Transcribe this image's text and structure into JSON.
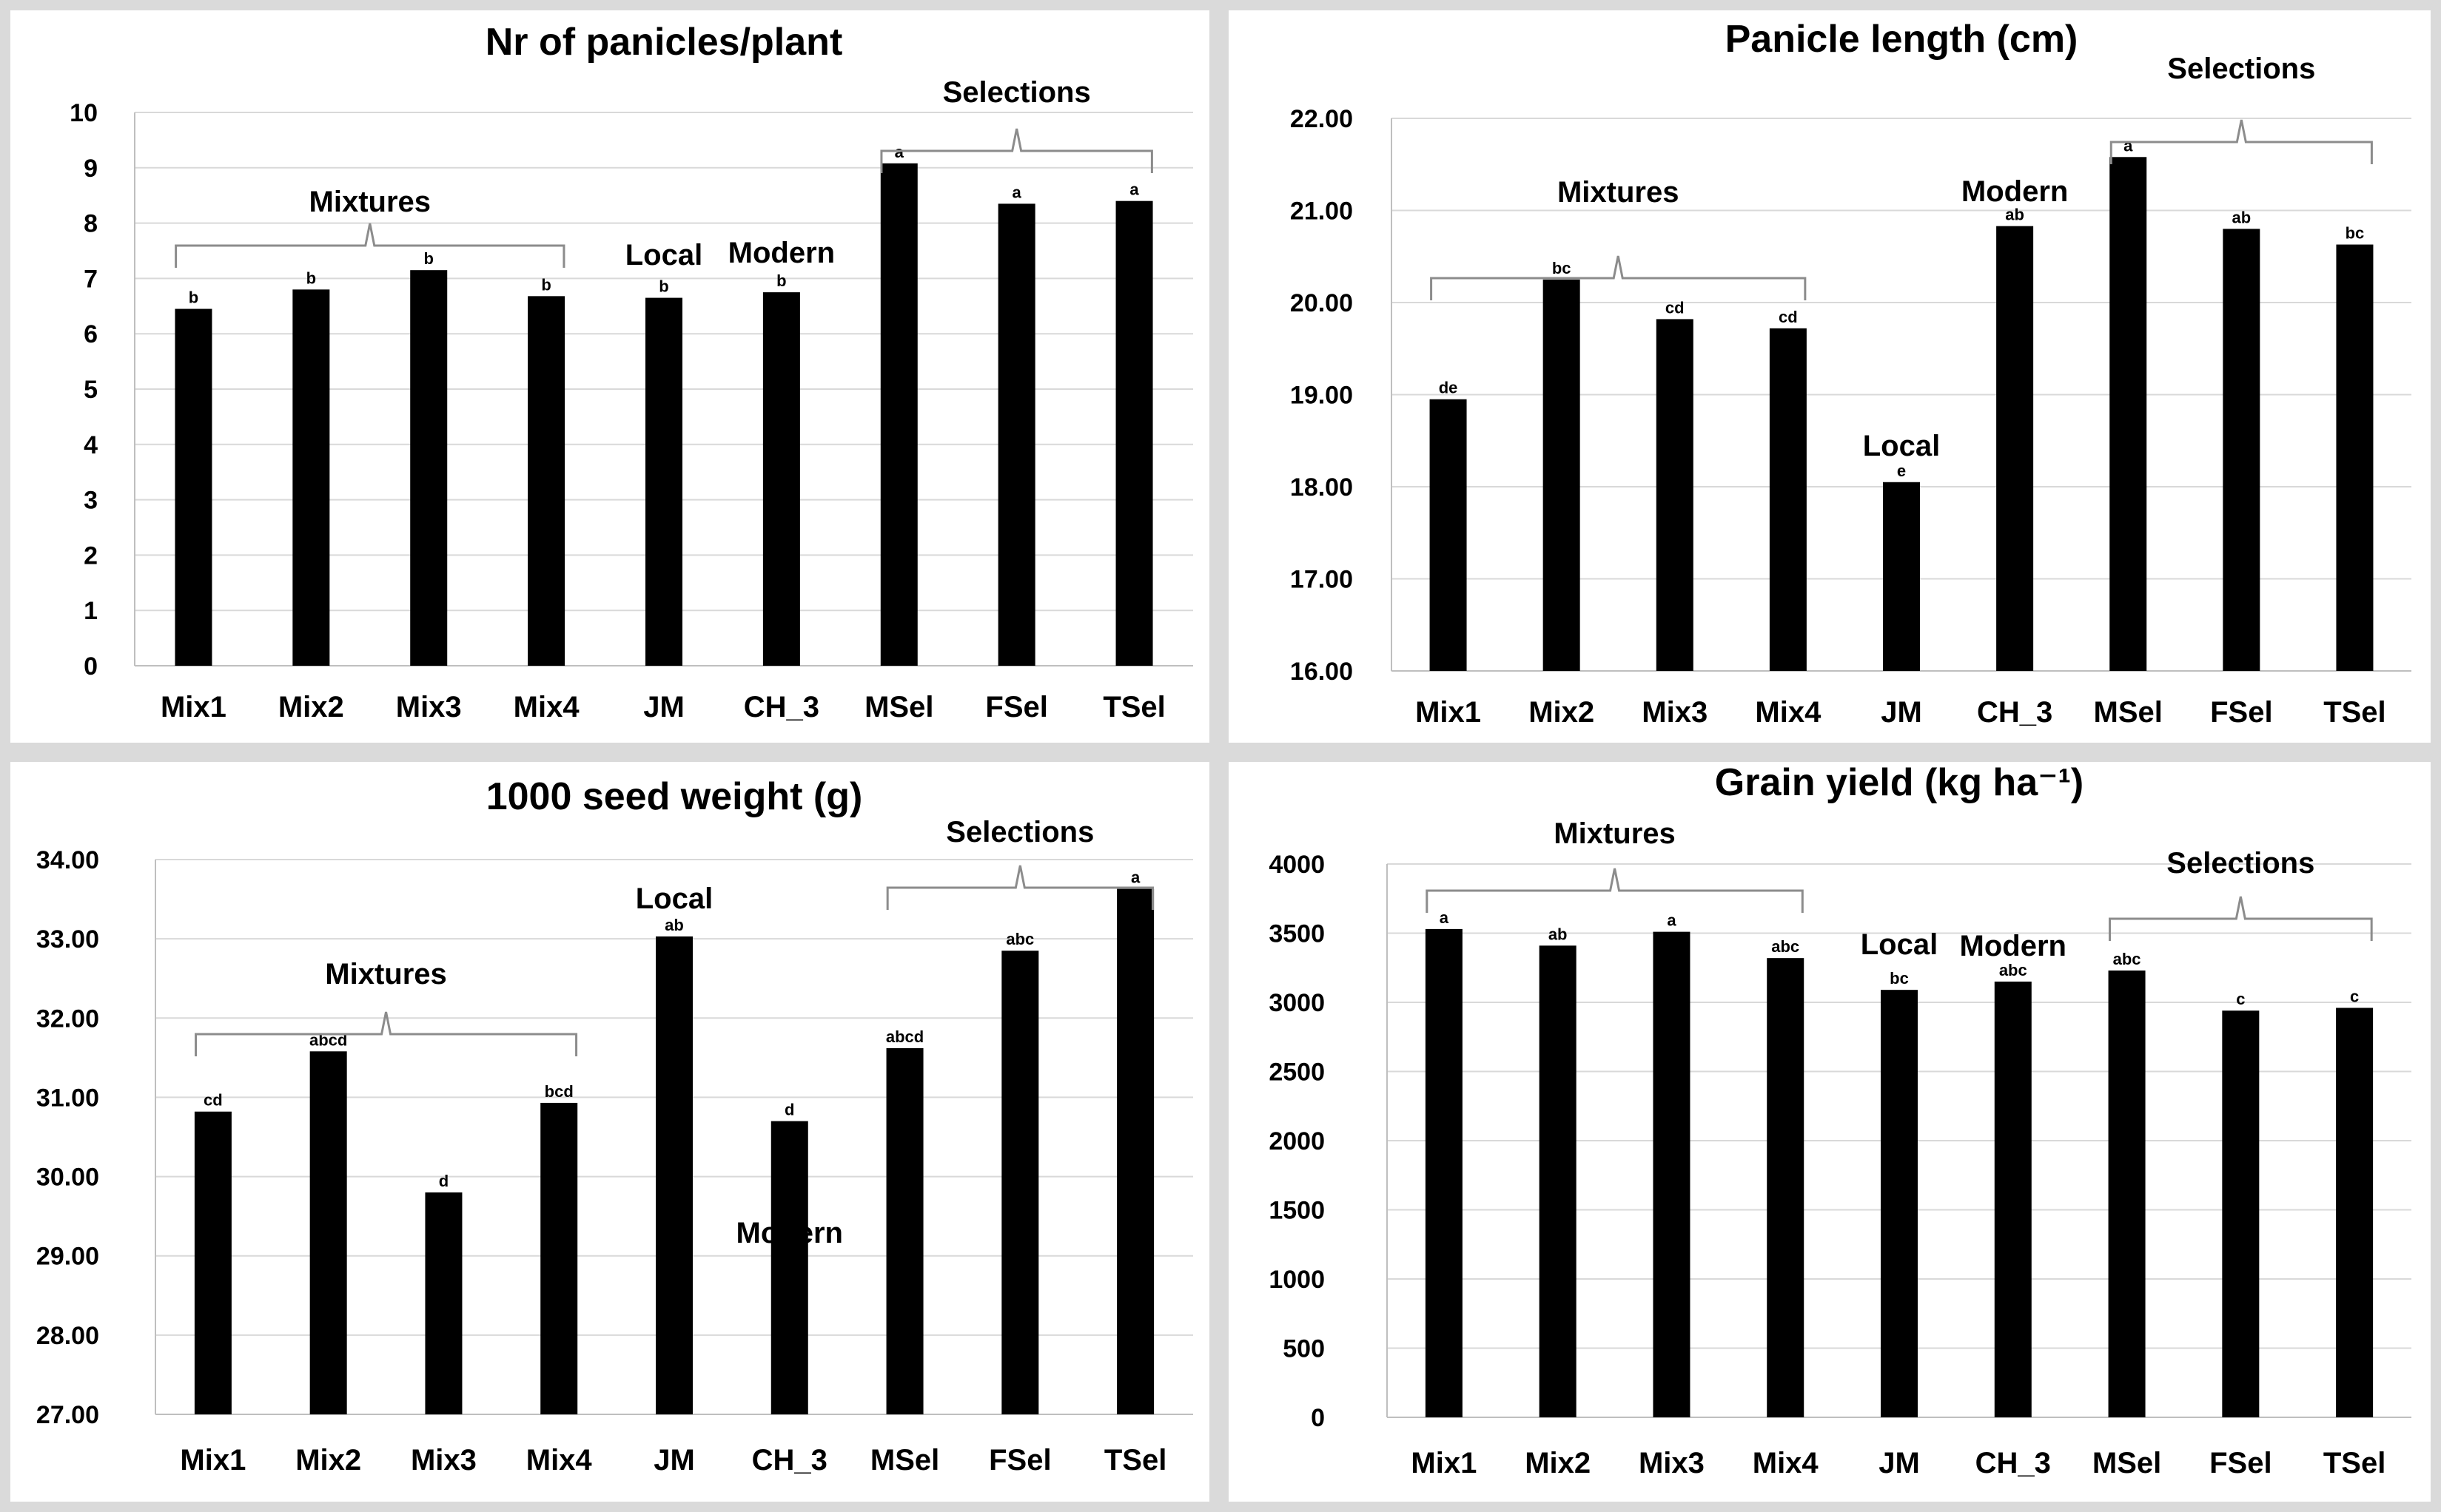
{
  "chart_data": [
    {
      "type": "bar",
      "title": "Nr of panicles/plant",
      "categories": [
        "Mix1",
        "Mix2",
        "Mix3",
        "Mix4",
        "JM",
        "CH_3",
        "MSel",
        "FSel",
        "TSel"
      ],
      "values": [
        6.45,
        6.8,
        7.15,
        6.68,
        6.65,
        6.75,
        9.08,
        8.35,
        8.4
      ],
      "letters": [
        "b",
        "b",
        "b",
        "b",
        "b",
        "b",
        "a",
        "a",
        "a"
      ],
      "ylim": [
        0,
        10
      ],
      "yticks": [
        "0",
        "1",
        "2",
        "3",
        "4",
        "5",
        "6",
        "7",
        "8",
        "9",
        "10"
      ],
      "xlabel": "",
      "ylabel": "",
      "grid": true,
      "annotations": [
        {
          "text": "Mixtures",
          "bracket": [
            0,
            3
          ]
        },
        {
          "text": "Local",
          "over": 4
        },
        {
          "text": "Modern",
          "over": 5
        },
        {
          "text": "Selections",
          "bracket": [
            6,
            8
          ]
        }
      ]
    },
    {
      "type": "bar",
      "title": "Panicle length (cm)",
      "categories": [
        "Mix1",
        "Mix2",
        "Mix3",
        "Mix4",
        "JM",
        "CH_3",
        "MSel",
        "FSel",
        "TSel"
      ],
      "values": [
        18.95,
        20.25,
        19.82,
        19.72,
        18.05,
        20.83,
        21.58,
        20.8,
        20.63
      ],
      "letters": [
        "de",
        "bc",
        "cd",
        "cd",
        "e",
        "ab",
        "a",
        "ab",
        "bc"
      ],
      "ylim": [
        16,
        22
      ],
      "yticks": [
        "16.00",
        "17.00",
        "18.00",
        "19.00",
        "20.00",
        "21.00",
        "22.00"
      ],
      "xlabel": "",
      "ylabel": "",
      "grid": true,
      "annotations": [
        {
          "text": "Mixtures",
          "bracket": [
            0,
            3
          ]
        },
        {
          "text": "Local",
          "over": 4
        },
        {
          "text": "Modern",
          "over": 5
        },
        {
          "text": "Selections",
          "bracket": [
            6,
            8
          ]
        }
      ]
    },
    {
      "type": "bar",
      "title": "1000 seed weight (g)",
      "categories": [
        "Mix1",
        "Mix2",
        "Mix3",
        "Mix4",
        "JM",
        "CH_3",
        "MSel",
        "FSel",
        "TSel"
      ],
      "values": [
        30.82,
        31.58,
        29.8,
        30.93,
        33.03,
        30.7,
        31.62,
        32.85,
        33.63
      ],
      "letters": [
        "cd",
        "abcd",
        "d",
        "bcd",
        "ab",
        "d",
        "abcd",
        "abc",
        "a"
      ],
      "ylim": [
        27,
        34
      ],
      "yticks": [
        "27.00",
        "28.00",
        "29.00",
        "30.00",
        "31.00",
        "32.00",
        "33.00",
        "34.00"
      ],
      "xlabel": "",
      "ylabel": "",
      "grid": true,
      "annotations": [
        {
          "text": "Mixtures",
          "bracket": [
            0,
            3
          ]
        },
        {
          "text": "Local",
          "over": 4
        },
        {
          "text": "Modern",
          "over": 5
        },
        {
          "text": "Selections",
          "bracket": [
            6,
            8
          ]
        }
      ]
    },
    {
      "type": "bar",
      "title": "Grain yield (kg ha⁻¹)",
      "categories": [
        "Mix1",
        "Mix2",
        "Mix3",
        "Mix4",
        "JM",
        "CH_3",
        "MSel",
        "FSel",
        "TSel"
      ],
      "values": [
        3530,
        3410,
        3510,
        3320,
        3090,
        3150,
        3230,
        2940,
        2960
      ],
      "letters": [
        "a",
        "ab",
        "a",
        "abc",
        "bc",
        "abc",
        "abc",
        "c",
        "c"
      ],
      "ylim": [
        0,
        4000
      ],
      "yticks": [
        "0",
        "500",
        "1000",
        "1500",
        "2000",
        "2500",
        "3000",
        "3500",
        "4000"
      ],
      "xlabel": "",
      "ylabel": "",
      "grid": true,
      "annotations": [
        {
          "text": "Mixtures",
          "bracket": [
            0,
            3
          ]
        },
        {
          "text": "Local",
          "over": 4
        },
        {
          "text": "Modern",
          "over": 5
        },
        {
          "text": "Selections",
          "bracket": [
            6,
            8
          ]
        }
      ]
    }
  ]
}
